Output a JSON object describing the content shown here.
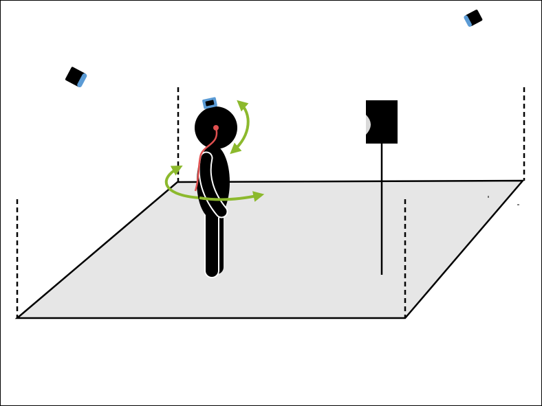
{
  "colors": {
    "background": "#ffffff",
    "frame": "#000000",
    "floor_fill": "#e6e6e6",
    "floor_outline": "#000000",
    "boundary_dash": "#000000",
    "person": "#000000",
    "person_outline": "#ffffff",
    "head_sensor": "#5b9bd5",
    "camera_lens": "#5b9bd5",
    "rotation_arrow": "#8cb92d",
    "signal_path": "#e05050",
    "speaker": "#000000",
    "speaker_cone": "#d9d9d9"
  },
  "icons": {
    "camera": "tracking-camera-icon",
    "head_sensor": "head-tracker-icon",
    "person": "listener-figure-icon",
    "speaker": "loudspeaker-icon",
    "yaw_rotation": "yaw-rotation-arrow-icon",
    "pitch_rotation": "pitch-rotation-arrow-icon"
  },
  "scene": {
    "camera_count": 2,
    "speaker_count": 1,
    "boundary_post_count": 4
  }
}
